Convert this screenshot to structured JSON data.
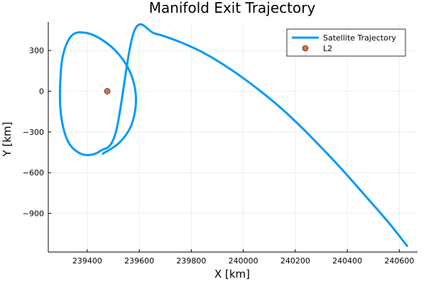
{
  "chart_data": {
    "type": "line",
    "title": "Manifold Exit Trajectory",
    "xlabel": "X [km]",
    "ylabel": "Y [km]",
    "xlim": [
      239250,
      240670
    ],
    "ylim": [
      -1185,
      510
    ],
    "xticks": [
      239400,
      239600,
      239800,
      240000,
      240200,
      240400,
      240600
    ],
    "xtick_labels": [
      "239400",
      "239600",
      "239800",
      "240000",
      "240200",
      "240400",
      "240600"
    ],
    "yticks": [
      300,
      0,
      -300,
      -600,
      -900
    ],
    "ytick_labels": [
      "300",
      "0",
      "−300",
      "−600",
      "−900"
    ],
    "grid": true,
    "legend_position": "top-right",
    "series": [
      {
        "name": "Satellite Trajectory",
        "kind": "line",
        "color": "#009AFA",
        "x": [
          239460,
          239520,
          239565,
          239585,
          239585,
          239565,
          239520,
          239460,
          239395,
          239340,
          239305,
          239295,
          239300,
          239320,
          239350,
          239395,
          239450,
          239510,
          239580,
          239660,
          239760,
          239860,
          239960,
          240060,
          240160,
          240260,
          240360,
          240460,
          240560,
          240630
        ],
        "y": [
          -460,
          -385,
          -270,
          -130,
          0,
          140,
          275,
          375,
          430,
          410,
          250,
          0,
          -190,
          -345,
          -430,
          -470,
          -440,
          -300,
          440,
          425,
          360,
          270,
          150,
          10,
          -150,
          -335,
          -535,
          -750,
          -970,
          -1140
        ]
      },
      {
        "name": "L2",
        "kind": "scatter",
        "color": "#E26F46",
        "x": [
          239477
        ],
        "y": [
          0
        ]
      }
    ]
  }
}
